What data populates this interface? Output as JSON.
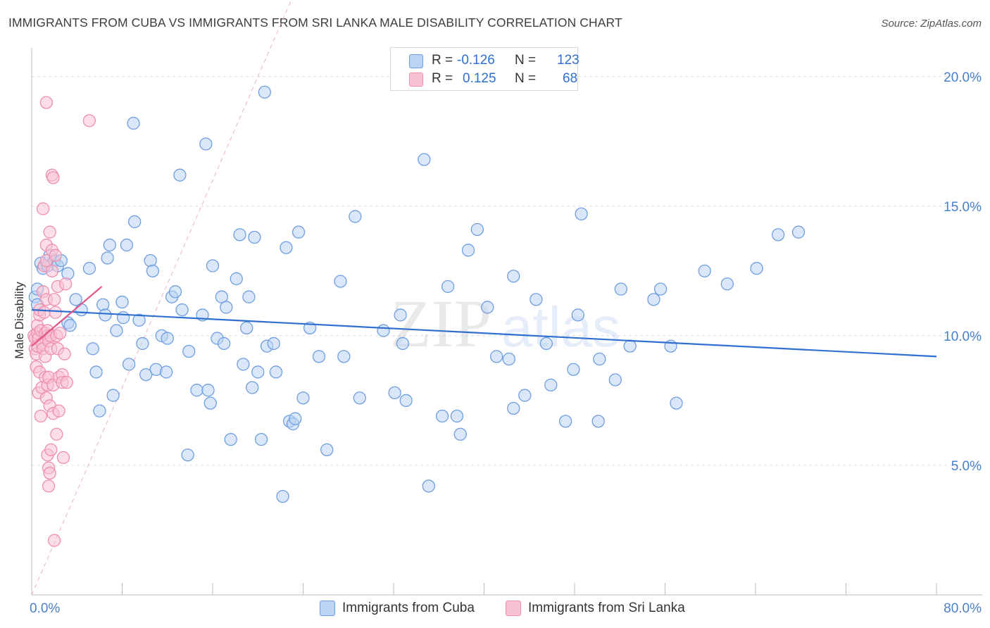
{
  "title": "IMMIGRANTS FROM CUBA VS IMMIGRANTS FROM SRI LANKA MALE DISABILITY CORRELATION CHART",
  "source": "Source: ZipAtlas.com",
  "watermark": {
    "zip": "ZIP",
    "atlas": "atlas"
  },
  "legend": {
    "rows": [
      {
        "r_label": "R =",
        "r_value": "-0.126",
        "n_label": "N =",
        "n_value": "123"
      },
      {
        "r_label": "R =",
        "r_value": "0.125",
        "n_label": "N =",
        "n_value": "68"
      }
    ]
  },
  "chart_data": {
    "type": "scatter",
    "title": "IMMIGRANTS FROM CUBA VS IMMIGRANTS FROM SRI LANKA MALE DISABILITY CORRELATION CHART",
    "xlabel": "",
    "ylabel": "Male Disability",
    "xlim": [
      0,
      80
    ],
    "ylim": [
      0,
      21
    ],
    "x_tick_labels": [
      {
        "value": 0,
        "label": "0.0%"
      },
      {
        "value": 80,
        "label": "80.0%"
      }
    ],
    "y_tick_labels": [
      {
        "value": 5,
        "label": "5.0%"
      },
      {
        "value": 10,
        "label": "10.0%"
      },
      {
        "value": 15,
        "label": "15.0%"
      },
      {
        "value": 20,
        "label": "20.0%"
      }
    ],
    "grid": true,
    "legend_position": "top-center",
    "series": [
      {
        "name": "Immigrants from Cuba",
        "color": "#6f9ee0",
        "fill": "#bcd3f3",
        "trend": {
          "x": [
            0,
            80
          ],
          "y": [
            11.0,
            9.2
          ],
          "color": "#2f6fd0"
        },
        "points": [
          [
            0.3,
            11.5
          ],
          [
            0.5,
            11.8
          ],
          [
            0.5,
            11.2
          ],
          [
            0.8,
            12.8
          ],
          [
            1.0,
            12.6
          ],
          [
            1.4,
            12.7
          ],
          [
            1.6,
            13.1
          ],
          [
            2.0,
            12.9
          ],
          [
            2.3,
            12.7
          ],
          [
            2.6,
            12.9
          ],
          [
            3.2,
            12.4
          ],
          [
            3.2,
            10.5
          ],
          [
            3.4,
            10.4
          ],
          [
            3.9,
            11.4
          ],
          [
            4.4,
            11.0
          ],
          [
            5.1,
            12.6
          ],
          [
            5.4,
            9.5
          ],
          [
            5.7,
            8.6
          ],
          [
            6.0,
            7.1
          ],
          [
            6.3,
            11.2
          ],
          [
            6.5,
            10.8
          ],
          [
            6.7,
            13.0
          ],
          [
            6.9,
            13.5
          ],
          [
            7.2,
            7.7
          ],
          [
            7.5,
            10.2
          ],
          [
            8.0,
            11.3
          ],
          [
            8.1,
            10.7
          ],
          [
            8.4,
            13.5
          ],
          [
            8.6,
            8.9
          ],
          [
            9.0,
            18.2
          ],
          [
            9.1,
            14.4
          ],
          [
            9.5,
            10.6
          ],
          [
            9.8,
            9.7
          ],
          [
            10.1,
            8.5
          ],
          [
            10.5,
            12.9
          ],
          [
            10.7,
            12.5
          ],
          [
            11.0,
            8.7
          ],
          [
            11.5,
            10.0
          ],
          [
            11.9,
            8.6
          ],
          [
            12.0,
            9.9
          ],
          [
            12.4,
            11.5
          ],
          [
            12.7,
            11.7
          ],
          [
            13.1,
            16.2
          ],
          [
            13.3,
            11.0
          ],
          [
            13.8,
            5.4
          ],
          [
            13.9,
            9.4
          ],
          [
            14.6,
            7.9
          ],
          [
            15.1,
            10.8
          ],
          [
            15.4,
            17.4
          ],
          [
            15.6,
            7.9
          ],
          [
            15.8,
            7.4
          ],
          [
            16.0,
            12.7
          ],
          [
            16.4,
            9.9
          ],
          [
            16.8,
            11.5
          ],
          [
            17.0,
            9.7
          ],
          [
            17.2,
            11.1
          ],
          [
            17.6,
            6.0
          ],
          [
            18.1,
            12.2
          ],
          [
            18.4,
            13.9
          ],
          [
            18.7,
            8.9
          ],
          [
            19.0,
            10.3
          ],
          [
            19.2,
            11.5
          ],
          [
            19.5,
            8.0
          ],
          [
            19.7,
            13.8
          ],
          [
            20.0,
            8.6
          ],
          [
            20.3,
            6.0
          ],
          [
            20.6,
            19.4
          ],
          [
            20.8,
            9.6
          ],
          [
            21.4,
            9.7
          ],
          [
            21.6,
            8.6
          ],
          [
            22.2,
            3.8
          ],
          [
            22.5,
            13.4
          ],
          [
            22.8,
            6.7
          ],
          [
            23.1,
            6.6
          ],
          [
            23.3,
            6.8
          ],
          [
            23.6,
            14.0
          ],
          [
            24.0,
            7.6
          ],
          [
            24.6,
            10.3
          ],
          [
            25.4,
            9.2
          ],
          [
            26.1,
            5.6
          ],
          [
            27.3,
            12.1
          ],
          [
            27.6,
            9.2
          ],
          [
            28.6,
            14.6
          ],
          [
            29.0,
            7.6
          ],
          [
            31.1,
            10.2
          ],
          [
            32.1,
            7.8
          ],
          [
            32.6,
            10.8
          ],
          [
            32.8,
            9.7
          ],
          [
            33.1,
            7.5
          ],
          [
            34.7,
            16.8
          ],
          [
            35.1,
            4.2
          ],
          [
            36.3,
            6.9
          ],
          [
            36.8,
            11.9
          ],
          [
            37.6,
            6.9
          ],
          [
            37.9,
            6.2
          ],
          [
            38.6,
            13.3
          ],
          [
            39.4,
            14.1
          ],
          [
            40.3,
            11.1
          ],
          [
            41.1,
            9.2
          ],
          [
            42.2,
            9.1
          ],
          [
            42.6,
            12.3
          ],
          [
            42.6,
            7.2
          ],
          [
            43.6,
            7.7
          ],
          [
            44.6,
            11.4
          ],
          [
            45.5,
            9.7
          ],
          [
            45.9,
            8.1
          ],
          [
            47.2,
            6.7
          ],
          [
            47.9,
            8.7
          ],
          [
            48.3,
            10.8
          ],
          [
            48.6,
            14.7
          ],
          [
            50.1,
            6.7
          ],
          [
            50.2,
            9.1
          ],
          [
            51.6,
            8.3
          ],
          [
            52.9,
            9.6
          ],
          [
            52.1,
            11.8
          ],
          [
            55.0,
            11.4
          ],
          [
            55.6,
            11.8
          ],
          [
            56.5,
            9.6
          ],
          [
            57.0,
            7.4
          ],
          [
            59.5,
            12.5
          ],
          [
            61.5,
            12.0
          ],
          [
            64.1,
            12.6
          ],
          [
            66.0,
            13.9
          ],
          [
            67.8,
            14.0
          ]
        ]
      },
      {
        "name": "Immigrants from Sri Lanka",
        "color": "#ee8fae",
        "fill": "#f7c3d4",
        "trend": {
          "x": [
            0,
            6.2
          ],
          "y": [
            9.6,
            11.9
          ],
          "color": "#e0558a"
        },
        "points": [
          [
            0.2,
            10.0
          ],
          [
            0.3,
            9.5
          ],
          [
            0.3,
            9.9
          ],
          [
            0.4,
            8.8
          ],
          [
            0.4,
            9.3
          ],
          [
            0.5,
            10.1
          ],
          [
            0.5,
            10.4
          ],
          [
            0.5,
            9.6
          ],
          [
            0.6,
            7.8
          ],
          [
            0.6,
            9.9
          ],
          [
            0.7,
            10.8
          ],
          [
            0.7,
            11.0
          ],
          [
            0.7,
            8.6
          ],
          [
            0.8,
            6.9
          ],
          [
            0.8,
            10.2
          ],
          [
            0.9,
            9.7
          ],
          [
            0.9,
            8.0
          ],
          [
            1.0,
            9.5
          ],
          [
            1.0,
            11.7
          ],
          [
            1.0,
            14.9
          ],
          [
            1.1,
            10.9
          ],
          [
            1.1,
            12.7
          ],
          [
            1.2,
            10.1
          ],
          [
            1.2,
            8.4
          ],
          [
            1.2,
            9.2
          ],
          [
            1.3,
            19.0
          ],
          [
            1.3,
            7.6
          ],
          [
            1.3,
            13.5
          ],
          [
            1.3,
            12.9
          ],
          [
            1.3,
            11.4
          ],
          [
            1.4,
            10.0
          ],
          [
            1.4,
            8.1
          ],
          [
            1.4,
            5.4
          ],
          [
            1.4,
            10.2
          ],
          [
            1.5,
            4.2
          ],
          [
            1.5,
            4.9
          ],
          [
            1.5,
            8.4
          ],
          [
            1.5,
            9.8
          ],
          [
            1.6,
            4.7
          ],
          [
            1.6,
            7.3
          ],
          [
            1.6,
            14.0
          ],
          [
            1.7,
            10.0
          ],
          [
            1.7,
            5.6
          ],
          [
            1.7,
            9.5
          ],
          [
            1.8,
            13.3
          ],
          [
            1.8,
            12.5
          ],
          [
            1.8,
            16.2
          ],
          [
            1.9,
            16.1
          ],
          [
            1.9,
            7.0
          ],
          [
            1.9,
            8.1
          ],
          [
            2.0,
            2.1
          ],
          [
            2.0,
            11.4
          ],
          [
            2.1,
            10.9
          ],
          [
            2.1,
            13.1
          ],
          [
            2.2,
            6.2
          ],
          [
            2.2,
            10.0
          ],
          [
            2.3,
            9.5
          ],
          [
            2.3,
            11.9
          ],
          [
            2.4,
            7.1
          ],
          [
            2.4,
            8.4
          ],
          [
            2.5,
            10.1
          ],
          [
            2.7,
            8.5
          ],
          [
            2.7,
            8.2
          ],
          [
            2.8,
            5.3
          ],
          [
            2.9,
            9.3
          ],
          [
            3.0,
            12.0
          ],
          [
            3.1,
            8.2
          ],
          [
            5.1,
            18.3
          ]
        ]
      }
    ]
  },
  "bottom_legend": [
    {
      "label": "Immigrants from Cuba"
    },
    {
      "label": "Immigrants from Sri Lanka"
    }
  ],
  "colors": {
    "blue_stroke": "#6f9ee0",
    "blue_fill": "#bcd3f3",
    "pink_stroke": "#ee8fae",
    "pink_fill": "#f7c3d4"
  }
}
